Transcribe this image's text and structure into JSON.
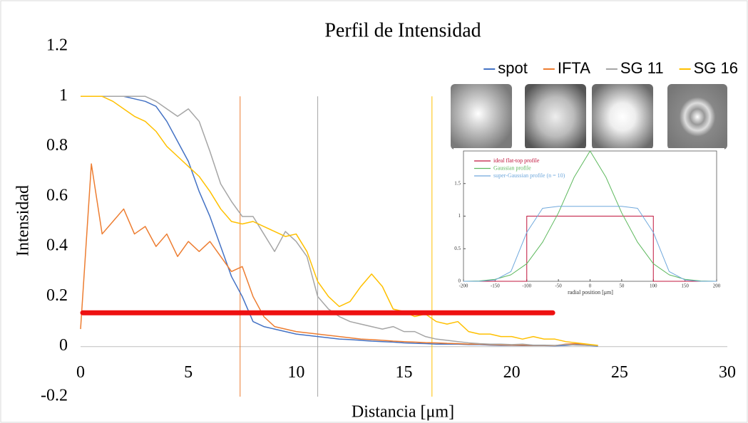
{
  "chart_data": [
    {
      "type": "line",
      "title": "Perfil de Intensidad",
      "x_label": "Distancia [μm]",
      "y_label": "Intensidad",
      "xlim": [
        0,
        30
      ],
      "xticks": [
        0,
        5,
        10,
        15,
        20,
        25,
        30
      ],
      "ylim": [
        -0.2,
        1.2
      ],
      "yticks": [
        -0.2,
        0,
        0.2,
        0.4,
        0.6,
        0.8,
        1,
        1.2
      ],
      "legend": "upper right",
      "x": [
        0,
        0.5,
        1,
        1.5,
        2,
        2.5,
        3,
        3.5,
        4,
        4.5,
        5,
        5.5,
        6,
        6.5,
        7,
        7.5,
        8,
        8.5,
        9,
        9.5,
        10,
        10.5,
        11,
        11.5,
        12,
        12.5,
        13,
        13.5,
        14,
        14.5,
        15,
        15.5,
        16,
        16.5,
        17,
        17.5,
        18,
        18.5,
        19,
        19.5,
        20,
        20.5,
        21,
        21.5,
        22,
        22.5,
        23,
        23.5,
        24
      ],
      "series": [
        {
          "name": "spot",
          "color": "#4472c4",
          "values": [
            1,
            1,
            1,
            1,
            1,
            0.99,
            0.98,
            0.96,
            0.9,
            0.82,
            0.74,
            0.62,
            0.52,
            0.4,
            0.28,
            0.2,
            0.1,
            0.08,
            0.07,
            0.06,
            0.05,
            0.045,
            0.04,
            0.035,
            0.03,
            0.028,
            0.025,
            0.022,
            0.02,
            0.018,
            0.015,
            0.013,
            0.012,
            0.01,
            0.01,
            0.01,
            0.008,
            0.008,
            0.006,
            0.005,
            0.005,
            0.004,
            0.004,
            0.004,
            0.003,
            0.005,
            0.008,
            0.005,
            0.002
          ]
        },
        {
          "name": "IFTA",
          "color": "#ed7d31",
          "values": [
            0.07,
            0.73,
            0.45,
            0.5,
            0.55,
            0.45,
            0.48,
            0.4,
            0.45,
            0.36,
            0.42,
            0.38,
            0.42,
            0.36,
            0.3,
            0.32,
            0.2,
            0.12,
            0.08,
            0.07,
            0.06,
            0.055,
            0.05,
            0.045,
            0.04,
            0.035,
            0.03,
            0.028,
            0.025,
            0.022,
            0.02,
            0.018,
            0.016,
            0.015,
            0.013,
            0.012,
            0.01,
            0.01,
            0.008,
            0.007,
            0.006,
            0.006,
            0.005,
            0.005,
            0.004,
            0.01,
            0.012,
            0.008,
            0.004
          ]
        },
        {
          "name": "SG 11",
          "color": "#a5a5a5",
          "values": [
            1,
            1,
            1,
            1,
            1,
            1,
            1,
            0.98,
            0.95,
            0.92,
            0.95,
            0.9,
            0.78,
            0.65,
            0.58,
            0.52,
            0.52,
            0.45,
            0.38,
            0.46,
            0.42,
            0.36,
            0.2,
            0.15,
            0.12,
            0.1,
            0.09,
            0.08,
            0.07,
            0.08,
            0.06,
            0.06,
            0.04,
            0.03,
            0.025,
            0.02,
            0.015,
            0.012,
            0.01,
            0.01,
            0.008,
            0.01,
            0.006,
            0.006,
            0.005,
            0.008,
            0.006,
            0.005,
            0.004
          ]
        },
        {
          "name": "SG 16",
          "color": "#ffc000",
          "values": [
            1,
            1,
            1,
            0.98,
            0.95,
            0.92,
            0.9,
            0.86,
            0.8,
            0.76,
            0.72,
            0.68,
            0.62,
            0.55,
            0.5,
            0.49,
            0.5,
            0.48,
            0.46,
            0.44,
            0.45,
            0.38,
            0.26,
            0.2,
            0.16,
            0.18,
            0.24,
            0.29,
            0.24,
            0.15,
            0.14,
            0.12,
            0.13,
            0.1,
            0.09,
            0.1,
            0.06,
            0.05,
            0.05,
            0.04,
            0.04,
            0.03,
            0.04,
            0.03,
            0.03,
            0.02,
            0.015,
            0.01,
            0.005
          ]
        }
      ],
      "vlines": [
        {
          "x": 7.4,
          "color": "#ed7d31"
        },
        {
          "x": 11,
          "color": "#a5a5a5"
        },
        {
          "x": 16.3,
          "color": "#ffc000"
        }
      ],
      "hline": {
        "y": 0.135,
        "x": [
          0.1,
          21.9
        ],
        "color": "#ee1111"
      }
    },
    {
      "type": "line",
      "x_label": "radial position [μm]",
      "xlim": [
        -200,
        200
      ],
      "xticks": [
        -200,
        -150,
        -100,
        -50,
        0,
        50,
        100,
        150,
        200
      ],
      "ylim": [
        0,
        2
      ],
      "yticks": [
        0,
        0.5,
        1,
        1.5
      ],
      "legend": "upper left",
      "series": [
        {
          "name": "ideal flat-top profile",
          "color": "#c0143c",
          "x": [
            -200,
            -100,
            -100,
            100,
            100,
            200
          ],
          "values": [
            0,
            0,
            1,
            1,
            0,
            0
          ]
        },
        {
          "name": "Gaussian profile",
          "color": "#5cb85c",
          "x": [
            -200,
            -175,
            -150,
            -125,
            -100,
            -75,
            -50,
            -25,
            0,
            25,
            50,
            75,
            100,
            125,
            150,
            175,
            200
          ],
          "values": [
            0,
            0.005,
            0.03,
            0.1,
            0.27,
            0.6,
            1.05,
            1.6,
            2,
            1.6,
            1.05,
            0.6,
            0.27,
            0.1,
            0.03,
            0.005,
            0
          ]
        },
        {
          "name": "super-Gaussian profile (n = 10)",
          "color": "#6fa8dc",
          "x": [
            -200,
            -175,
            -150,
            -125,
            -100,
            -75,
            -50,
            -25,
            0,
            25,
            50,
            75,
            100,
            125,
            150,
            175,
            200
          ],
          "values": [
            0,
            0,
            0.02,
            0.15,
            0.75,
            1.12,
            1.15,
            1.15,
            1.15,
            1.15,
            1.15,
            1.12,
            0.75,
            0.15,
            0.02,
            0,
            0
          ]
        }
      ]
    }
  ]
}
